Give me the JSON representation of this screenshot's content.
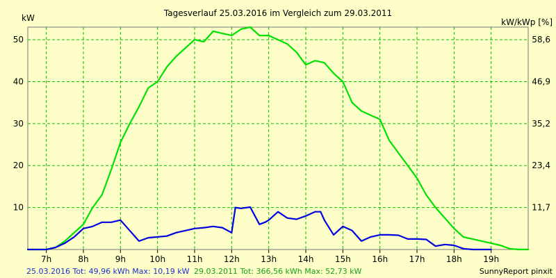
{
  "chart_data": {
    "type": "line",
    "title": "Tagesverlauf 25.03.2016 im Vergleich zum 29.03.2011",
    "ylabel_left": "kW",
    "ylabel_right": "kW/kWp [%]",
    "ylim": [
      0,
      53
    ],
    "x_ticks": [
      "7h",
      "8h",
      "9h",
      "10h",
      "11h",
      "12h",
      "13h",
      "14h",
      "15h",
      "16h",
      "17h",
      "18h",
      "19h"
    ],
    "y_ticks_left": [
      "10",
      "20",
      "30",
      "40",
      "50"
    ],
    "y_ticks_right": [
      "11,7",
      "23,4",
      "35,2",
      "46,9",
      "58,6"
    ],
    "grid": true,
    "series": [
      {
        "name": "25.03.2016",
        "color": "#0000e0",
        "x": [
          6.5,
          7.0,
          7.25,
          7.5,
          7.75,
          8.0,
          8.25,
          8.5,
          8.75,
          9.0,
          9.25,
          9.5,
          9.75,
          10.0,
          10.25,
          10.5,
          10.75,
          11.0,
          11.25,
          11.5,
          11.75,
          12.0,
          12.1,
          12.25,
          12.5,
          12.75,
          12.9,
          13.0,
          13.25,
          13.5,
          13.75,
          14.0,
          14.25,
          14.4,
          14.5,
          14.75,
          15.0,
          15.25,
          15.5,
          15.75,
          16.0,
          16.25,
          16.5,
          16.75,
          17.0,
          17.25,
          17.5,
          17.75,
          18.0,
          18.25,
          18.5,
          18.75,
          19.0
        ],
        "y": [
          0,
          0,
          0.5,
          1.5,
          3,
          5,
          5.5,
          6.5,
          6.5,
          7,
          4.5,
          2,
          2.8,
          3,
          3.2,
          4,
          4.5,
          5,
          5.2,
          5.5,
          5.2,
          4,
          10,
          9.8,
          10.1,
          6,
          6.5,
          7,
          9,
          7.5,
          7.2,
          8,
          9,
          9,
          7,
          3.5,
          5.5,
          4.5,
          2,
          3,
          3.5,
          3.5,
          3.4,
          2.5,
          2.5,
          2.4,
          0.8,
          1.2,
          1,
          0.2,
          0,
          0,
          0
        ]
      },
      {
        "name": "29.03.2011",
        "color": "#00e000",
        "x": [
          6.5,
          7.0,
          7.25,
          7.5,
          7.75,
          8.0,
          8.25,
          8.5,
          8.75,
          9.0,
          9.25,
          9.5,
          9.75,
          10.0,
          10.25,
          10.5,
          10.75,
          11.0,
          11.25,
          11.5,
          11.75,
          12.0,
          12.25,
          12.5,
          12.75,
          13.0,
          13.25,
          13.5,
          13.75,
          14.0,
          14.25,
          14.5,
          14.75,
          15.0,
          15.25,
          15.5,
          15.75,
          16.0,
          16.25,
          16.5,
          16.75,
          17.0,
          17.25,
          17.5,
          17.75,
          18.0,
          18.25,
          18.5,
          18.75,
          19.0,
          19.25,
          19.5,
          19.75,
          20.0
        ],
        "y": [
          0,
          0,
          0.5,
          2,
          4,
          6,
          10,
          13,
          19,
          25.5,
          30,
          34,
          38.5,
          40,
          43.5,
          46,
          48,
          50,
          49.5,
          52,
          51.5,
          51,
          52.5,
          53,
          51,
          51,
          50,
          49,
          47,
          44,
          45,
          44.5,
          42,
          40,
          35,
          33,
          32,
          31,
          26,
          23,
          20,
          17,
          13,
          10,
          7.5,
          5,
          3,
          2.5,
          2,
          1.5,
          1,
          0.2,
          0,
          0
        ]
      }
    ]
  },
  "footer": {
    "series1_summary": "25.03.2016 Tot: 49,96 kWh Max: 10,19 kW",
    "series2_summary": "29.03.2011 Tot: 366,56 kWh Max: 52,73 kW",
    "credit": "SunnyReport pinxit"
  }
}
